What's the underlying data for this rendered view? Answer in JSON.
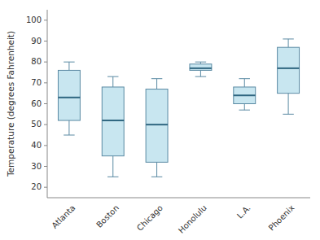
{
  "chart_data": {
    "type": "box",
    "categories": [
      "Atlanta",
      "Boston",
      "Chicago",
      "Honolulu",
      "L.A.",
      "Phoenix"
    ],
    "values": [
      {
        "whislo": 45,
        "q1": 52,
        "med": 63,
        "q3": 76,
        "whishi": 80
      },
      {
        "whislo": 25,
        "q1": 35,
        "med": 52,
        "q3": 68,
        "whishi": 73
      },
      {
        "whislo": 25,
        "q1": 32,
        "med": 50,
        "q3": 67,
        "whishi": 72
      },
      {
        "whislo": 73,
        "q1": 76,
        "med": 77,
        "q3": 79,
        "whishi": 80
      },
      {
        "whislo": 57,
        "q1": 60,
        "med": 64,
        "q3": 68,
        "whishi": 72
      },
      {
        "whislo": 55,
        "q1": 65,
        "med": 77,
        "q3": 87,
        "whishi": 91
      }
    ],
    "ylabel": "Temperature (degrees Fahrenheit)",
    "ylim": [
      15,
      105
    ],
    "yticks": [
      20,
      30,
      40,
      50,
      60,
      70,
      80,
      90,
      100
    ],
    "color": "#c8e6f0",
    "grid": false
  }
}
